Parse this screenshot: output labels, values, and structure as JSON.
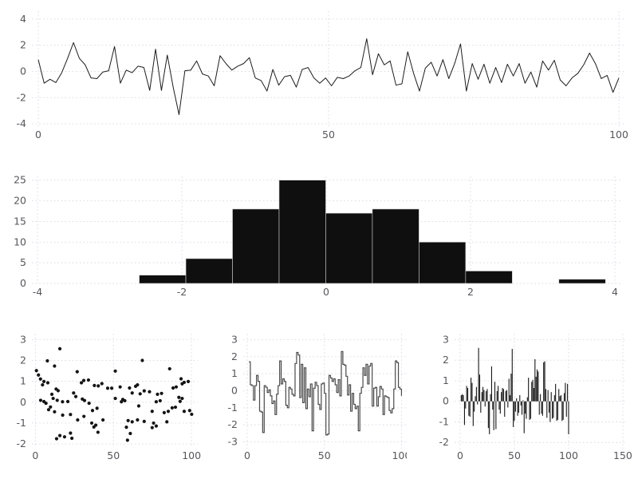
{
  "figure": {
    "background": "#ffffff",
    "grid_color": "#dcdce6",
    "tick_label_color": "#57575c"
  },
  "chart_data": [
    {
      "id": "noise-line",
      "type": "line",
      "title": "",
      "xlabel": "",
      "ylabel": "",
      "color": "#1c1c1c",
      "x_ticks": [
        0,
        50,
        100
      ],
      "y_ticks": [
        -4,
        -2,
        0,
        2,
        4
      ],
      "xlim": [
        -1.1,
        101.1
      ],
      "ylim": [
        -4.3,
        4.6
      ],
      "grid": true,
      "x_start": 0,
      "x_step": 1.0101,
      "values": [
        0.9,
        -0.9,
        -0.6,
        -0.85,
        -0.1,
        1.0,
        2.2,
        1.0,
        0.5,
        -0.5,
        -0.55,
        -0.05,
        0.05,
        1.9,
        -0.9,
        0.1,
        -0.1,
        0.4,
        0.3,
        -1.45,
        1.7,
        -1.45,
        1.25,
        -1.2,
        -3.3,
        0.05,
        0.1,
        0.8,
        -0.2,
        -0.35,
        -1.1,
        1.2,
        0.6,
        0.1,
        0.4,
        0.6,
        1.05,
        -0.5,
        -0.7,
        -1.5,
        0.15,
        -1.05,
        -0.4,
        -0.3,
        -1.2,
        0.15,
        0.3,
        -0.5,
        -0.9,
        -0.5,
        -1.1,
        -0.45,
        -0.55,
        -0.35,
        0.05,
        0.3,
        2.5,
        -0.25,
        1.35,
        0.5,
        0.8,
        -1.05,
        -0.95,
        1.5,
        -0.15,
        -1.5,
        0.25,
        0.7,
        -0.35,
        0.9,
        -0.55,
        0.6,
        2.1,
        -1.5,
        0.6,
        -0.6,
        0.55,
        -0.9,
        0.3,
        -0.85,
        0.55,
        -0.35,
        0.6,
        -0.9,
        -0.05,
        -1.2,
        0.8,
        0.1,
        0.85,
        -0.65,
        -1.1,
        -0.5,
        -0.15,
        0.5,
        1.4,
        0.6,
        -0.55,
        -0.3,
        -1.6,
        -0.5
      ]
    },
    {
      "id": "histogram",
      "type": "histogram",
      "title": "",
      "xlabel": "",
      "ylabel": "",
      "color": "#0f0f0f",
      "edge_color": "#cfcfcf",
      "x_ticks": [
        -4,
        -2,
        0,
        2,
        4
      ],
      "y_ticks": [
        0,
        5,
        10,
        15,
        20,
        25
      ],
      "xlim": [
        -4.077,
        4.088
      ],
      "ylim": [
        0,
        25.9
      ],
      "grid": true,
      "bin_start": -2.59,
      "bin_width": 0.646,
      "counts": [
        2,
        6,
        18,
        25,
        17,
        18,
        10,
        3,
        0,
        1
      ]
    },
    {
      "id": "scatter",
      "type": "scatter",
      "title": "",
      "xlabel": "",
      "ylabel": "",
      "color": "#141414",
      "marker_radius": 2.1,
      "x_ticks": [
        0,
        50,
        100
      ],
      "y_ticks": [
        -2,
        -1,
        0,
        1,
        2,
        3
      ],
      "xlim": [
        -2.2,
        104
      ],
      "ylim": [
        -2.15,
        3.28
      ],
      "grid": true,
      "points": [
        [
          0.7,
          1.51
        ],
        [
          2,
          1.3
        ],
        [
          3.3,
          1.11
        ],
        [
          4.6,
          0.83
        ],
        [
          8,
          0.93
        ],
        [
          7.7,
          1.98
        ],
        [
          12.3,
          1.73
        ],
        [
          15.7,
          2.56
        ],
        [
          26.8,
          1.46
        ],
        [
          5.5,
          0.99
        ],
        [
          13.3,
          0.63
        ],
        [
          14.6,
          0.55
        ],
        [
          31,
          1.04
        ],
        [
          29.5,
          0.93
        ],
        [
          34,
          1.06
        ],
        [
          37.8,
          0.8
        ],
        [
          40.3,
          0.78
        ],
        [
          42.6,
          0.89
        ],
        [
          46.3,
          0.67
        ],
        [
          48.9,
          0.67
        ],
        [
          3.4,
          0.09
        ],
        [
          5.5,
          0.03
        ],
        [
          6.8,
          -0.05
        ],
        [
          11.4,
          0.18
        ],
        [
          14,
          0.09
        ],
        [
          17.4,
          0.02
        ],
        [
          20.8,
          0.03
        ],
        [
          10.6,
          0.38
        ],
        [
          24.5,
          0.44
        ],
        [
          25.9,
          0.27
        ],
        [
          30.1,
          0.15
        ],
        [
          31.5,
          0.08
        ],
        [
          34.4,
          -0.05
        ],
        [
          9.7,
          -0.23
        ],
        [
          8.5,
          -0.36
        ],
        [
          12.3,
          -0.46
        ],
        [
          36.6,
          -0.4
        ],
        [
          39.5,
          -0.29
        ],
        [
          17.5,
          -0.62
        ],
        [
          22.5,
          -0.59
        ],
        [
          31.1,
          -0.68
        ],
        [
          27.1,
          -0.85
        ],
        [
          43.3,
          -0.85
        ],
        [
          36.1,
          -1.0
        ],
        [
          38.7,
          -1.1
        ],
        [
          37.5,
          -1.19
        ],
        [
          22.5,
          -1.48
        ],
        [
          40.1,
          -1.44
        ],
        [
          15.7,
          -1.6
        ],
        [
          18.7,
          -1.66
        ],
        [
          23.4,
          -1.73
        ],
        [
          13.6,
          -1.75
        ],
        [
          59,
          -1.82
        ],
        [
          60.8,
          -1.5
        ],
        [
          58.3,
          -1.2
        ],
        [
          51.2,
          1.49
        ],
        [
          68.5,
          2.0
        ],
        [
          86,
          1.6
        ],
        [
          93.3,
          1.12
        ],
        [
          97.9,
          0.99
        ],
        [
          95.3,
          0.95
        ],
        [
          94,
          0.88
        ],
        [
          54.3,
          0.73
        ],
        [
          60.3,
          0.68
        ],
        [
          64.2,
          0.76
        ],
        [
          65.4,
          0.83
        ],
        [
          69.7,
          0.54
        ],
        [
          73.1,
          0.5
        ],
        [
          62,
          0.44
        ],
        [
          67.1,
          0.4
        ],
        [
          78.2,
          0.38
        ],
        [
          80.8,
          0.42
        ],
        [
          88.2,
          0.68
        ],
        [
          90.2,
          0.73
        ],
        [
          51.2,
          0.18
        ],
        [
          56,
          0.13
        ],
        [
          57.3,
          0.07
        ],
        [
          55.1,
          0.02
        ],
        [
          77.4,
          0.02
        ],
        [
          79.9,
          0.07
        ],
        [
          91.9,
          0.23
        ],
        [
          94,
          0.18
        ],
        [
          92.7,
          0.04
        ],
        [
          66.2,
          -0.18
        ],
        [
          87.6,
          -0.27
        ],
        [
          89.7,
          -0.24
        ],
        [
          85.1,
          -0.44
        ],
        [
          82.5,
          -0.5
        ],
        [
          74.8,
          -0.44
        ],
        [
          95.3,
          -0.44
        ],
        [
          98.8,
          -0.4
        ],
        [
          100.1,
          -0.58
        ],
        [
          59.4,
          -0.88
        ],
        [
          62,
          -0.94
        ],
        [
          65.4,
          -0.85
        ],
        [
          69.7,
          -0.92
        ],
        [
          75.7,
          -1.0
        ],
        [
          77.4,
          -1.14
        ],
        [
          74.8,
          -1.22
        ],
        [
          84.2,
          -0.94
        ]
      ]
    },
    {
      "id": "step",
      "type": "step",
      "title": "",
      "xlabel": "",
      "ylabel": "",
      "color": "#4a4a4a",
      "x_ticks": [
        0,
        50,
        100
      ],
      "y_ticks": [
        -3,
        -2,
        -1,
        0,
        1,
        2,
        3
      ],
      "xlim": [
        -2.6,
        103.4
      ],
      "ylim": [
        -3.4,
        3.35
      ],
      "grid": true,
      "x_start": 1,
      "x_step": 1,
      "values": [
        1.7,
        0.35,
        0.3,
        -0.55,
        0.3,
        0.9,
        0.55,
        -1.2,
        -1.25,
        -2.45,
        0.3,
        0.2,
        -0.1,
        0.05,
        -0.3,
        -0.75,
        -0.6,
        -1.4,
        -0.2,
        0.3,
        1.75,
        0.4,
        0.7,
        0.55,
        -0.85,
        -1.0,
        0.2,
        0.1,
        -0.2,
        -0.3,
        1.6,
        2.25,
        2.1,
        -0.4,
        1.55,
        -0.7,
        1.35,
        -1.05,
        0.1,
        -0.35,
        0.4,
        -2.35,
        0.15,
        0.5,
        0.3,
        -0.8,
        -1.1,
        0.4,
        0.45,
        -0.15,
        -2.6,
        -2.55,
        0.9,
        0.75,
        0.55,
        0.7,
        0.35,
        -0.1,
        0.65,
        -0.3,
        2.3,
        1.55,
        1.5,
        0.85,
        -0.25,
        0.35,
        -1.2,
        -0.15,
        -0.8,
        -1.05,
        -0.9,
        -2.35,
        -0.15,
        0.2,
        1.35,
        0.9,
        1.55,
        0.4,
        1.45,
        1.6,
        -0.9,
        0.15,
        0.2,
        -0.9,
        -0.35,
        0.25,
        0.1,
        -1.4,
        -0.3,
        -0.35,
        -0.4,
        -1.15,
        -1.3,
        -1.05,
        0.1,
        1.75,
        1.65,
        0.2,
        0.1,
        -0.3
      ]
    },
    {
      "id": "bars",
      "type": "bar",
      "title": "",
      "xlabel": "",
      "ylabel": "",
      "color": "#141414",
      "bar_width": 0.8,
      "x_ticks": [
        0,
        50,
        100,
        150
      ],
      "y_ticks": [
        -2,
        -1,
        0,
        1,
        2,
        3
      ],
      "xlim": [
        -5.15,
        153.7
      ],
      "ylim": [
        -2.34,
        3.29
      ],
      "grid": true,
      "x_start": 1,
      "x_step": 1,
      "values": [
        0.3,
        0.35,
        0.3,
        -1.15,
        -0.35,
        0.75,
        0.65,
        -0.7,
        -0.75,
        1.15,
        0.9,
        -1.2,
        -0.5,
        0.25,
        0.7,
        -0.15,
        2.6,
        1.3,
        -0.55,
        0.45,
        0.7,
        0.55,
        -0.25,
        0.5,
        0.6,
        -1.3,
        -1.6,
        0.35,
        1.7,
        -0.4,
        -1.4,
        0.95,
        -1.35,
        0.5,
        0.75,
        -0.4,
        -0.6,
        0.45,
        0.65,
        0.6,
        -0.75,
        0.5,
        0.55,
        -0.3,
        1.1,
        0.3,
        1.35,
        2.55,
        -1.25,
        -0.95,
        -0.5,
        0.15,
        -0.7,
        -0.55,
        0.3,
        -0.2,
        -0.65,
        0.05,
        -1.55,
        -0.6,
        -0.85,
        0.2,
        1.15,
        -0.9,
        -0.85,
        0.95,
        1.05,
        0.65,
        2.05,
        1.2,
        1.55,
        1.45,
        -0.65,
        0.35,
        -0.6,
        -0.7,
        1.9,
        1.95,
        0.6,
        -0.8,
        0.55,
        -0.55,
        -1.0,
        0.45,
        -0.85,
        -0.8,
        0.3,
        0.85,
        -0.95,
        -0.9,
        0.6,
        0.25,
        0.3,
        -0.95,
        -0.9,
        0.4,
        0.9,
        -0.75,
        0.85,
        -1.6
      ]
    }
  ]
}
